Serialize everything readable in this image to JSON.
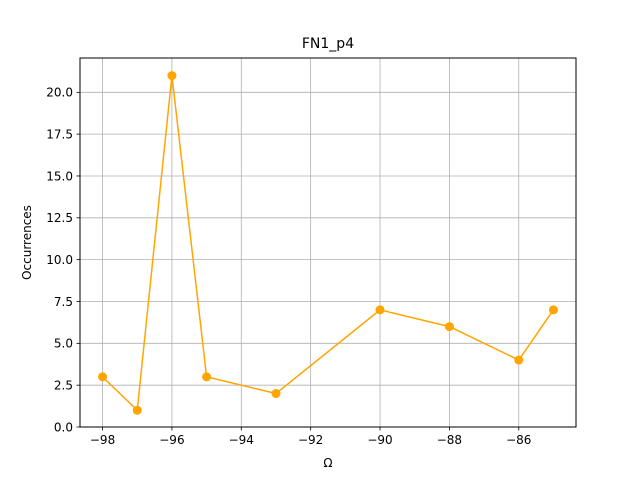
{
  "chart_data": {
    "type": "line",
    "title": "FN1_p4",
    "xlabel": "Ω",
    "ylabel": "Occurrences",
    "x": [
      -98,
      -97,
      -96,
      -95,
      -93,
      -90,
      -88,
      -86,
      -85
    ],
    "series": [
      {
        "values": [
          3,
          1,
          21,
          3,
          2,
          7,
          6,
          4,
          7
        ],
        "color": "#ffa500",
        "marker": "circle"
      }
    ],
    "xlim": [
      -98.65,
      -84.35
    ],
    "ylim": [
      0,
      22.05
    ],
    "xticks": [
      -98,
      -96,
      -94,
      -92,
      -90,
      -88,
      -86
    ],
    "xtick_labels": [
      "−98",
      "−96",
      "−94",
      "−92",
      "−90",
      "−88",
      "−86"
    ],
    "yticks": [
      0,
      2.5,
      5,
      7.5,
      10,
      12.5,
      15,
      17.5,
      20
    ],
    "ytick_labels": [
      "0.0",
      "2.5",
      "5.0",
      "7.5",
      "10.0",
      "12.5",
      "15.0",
      "17.5",
      "20.0"
    ],
    "grid": true,
    "legend": "none"
  }
}
